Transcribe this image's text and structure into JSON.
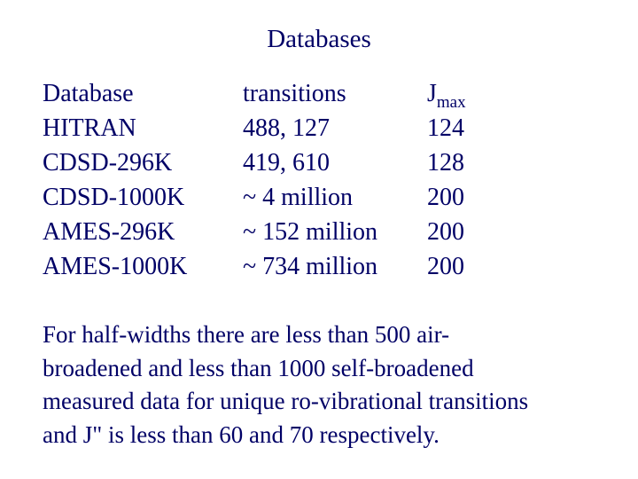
{
  "title": "Databases",
  "table": {
    "header": [
      "Database",
      "transitions",
      {
        "text": "J",
        "subscript": "max"
      }
    ],
    "rows": [
      [
        "HITRAN",
        "488, 127",
        "124"
      ],
      [
        "CDSD-296K",
        "419, 610",
        "128"
      ],
      [
        "CDSD-1000K",
        "~ 4 million",
        "200"
      ],
      [
        "AMES-296K",
        "~ 152 million",
        "200"
      ],
      [
        "AMES-1000K",
        "~ 734 million",
        "200"
      ]
    ]
  },
  "note": {
    "lines": [
      "For half-widths there are less than 500 air-",
      "broadened and less than 1000 self-broadened",
      "measured data for unique ro-vibrational transitions",
      "and J\" is less than 60 and 70 respectively."
    ]
  }
}
